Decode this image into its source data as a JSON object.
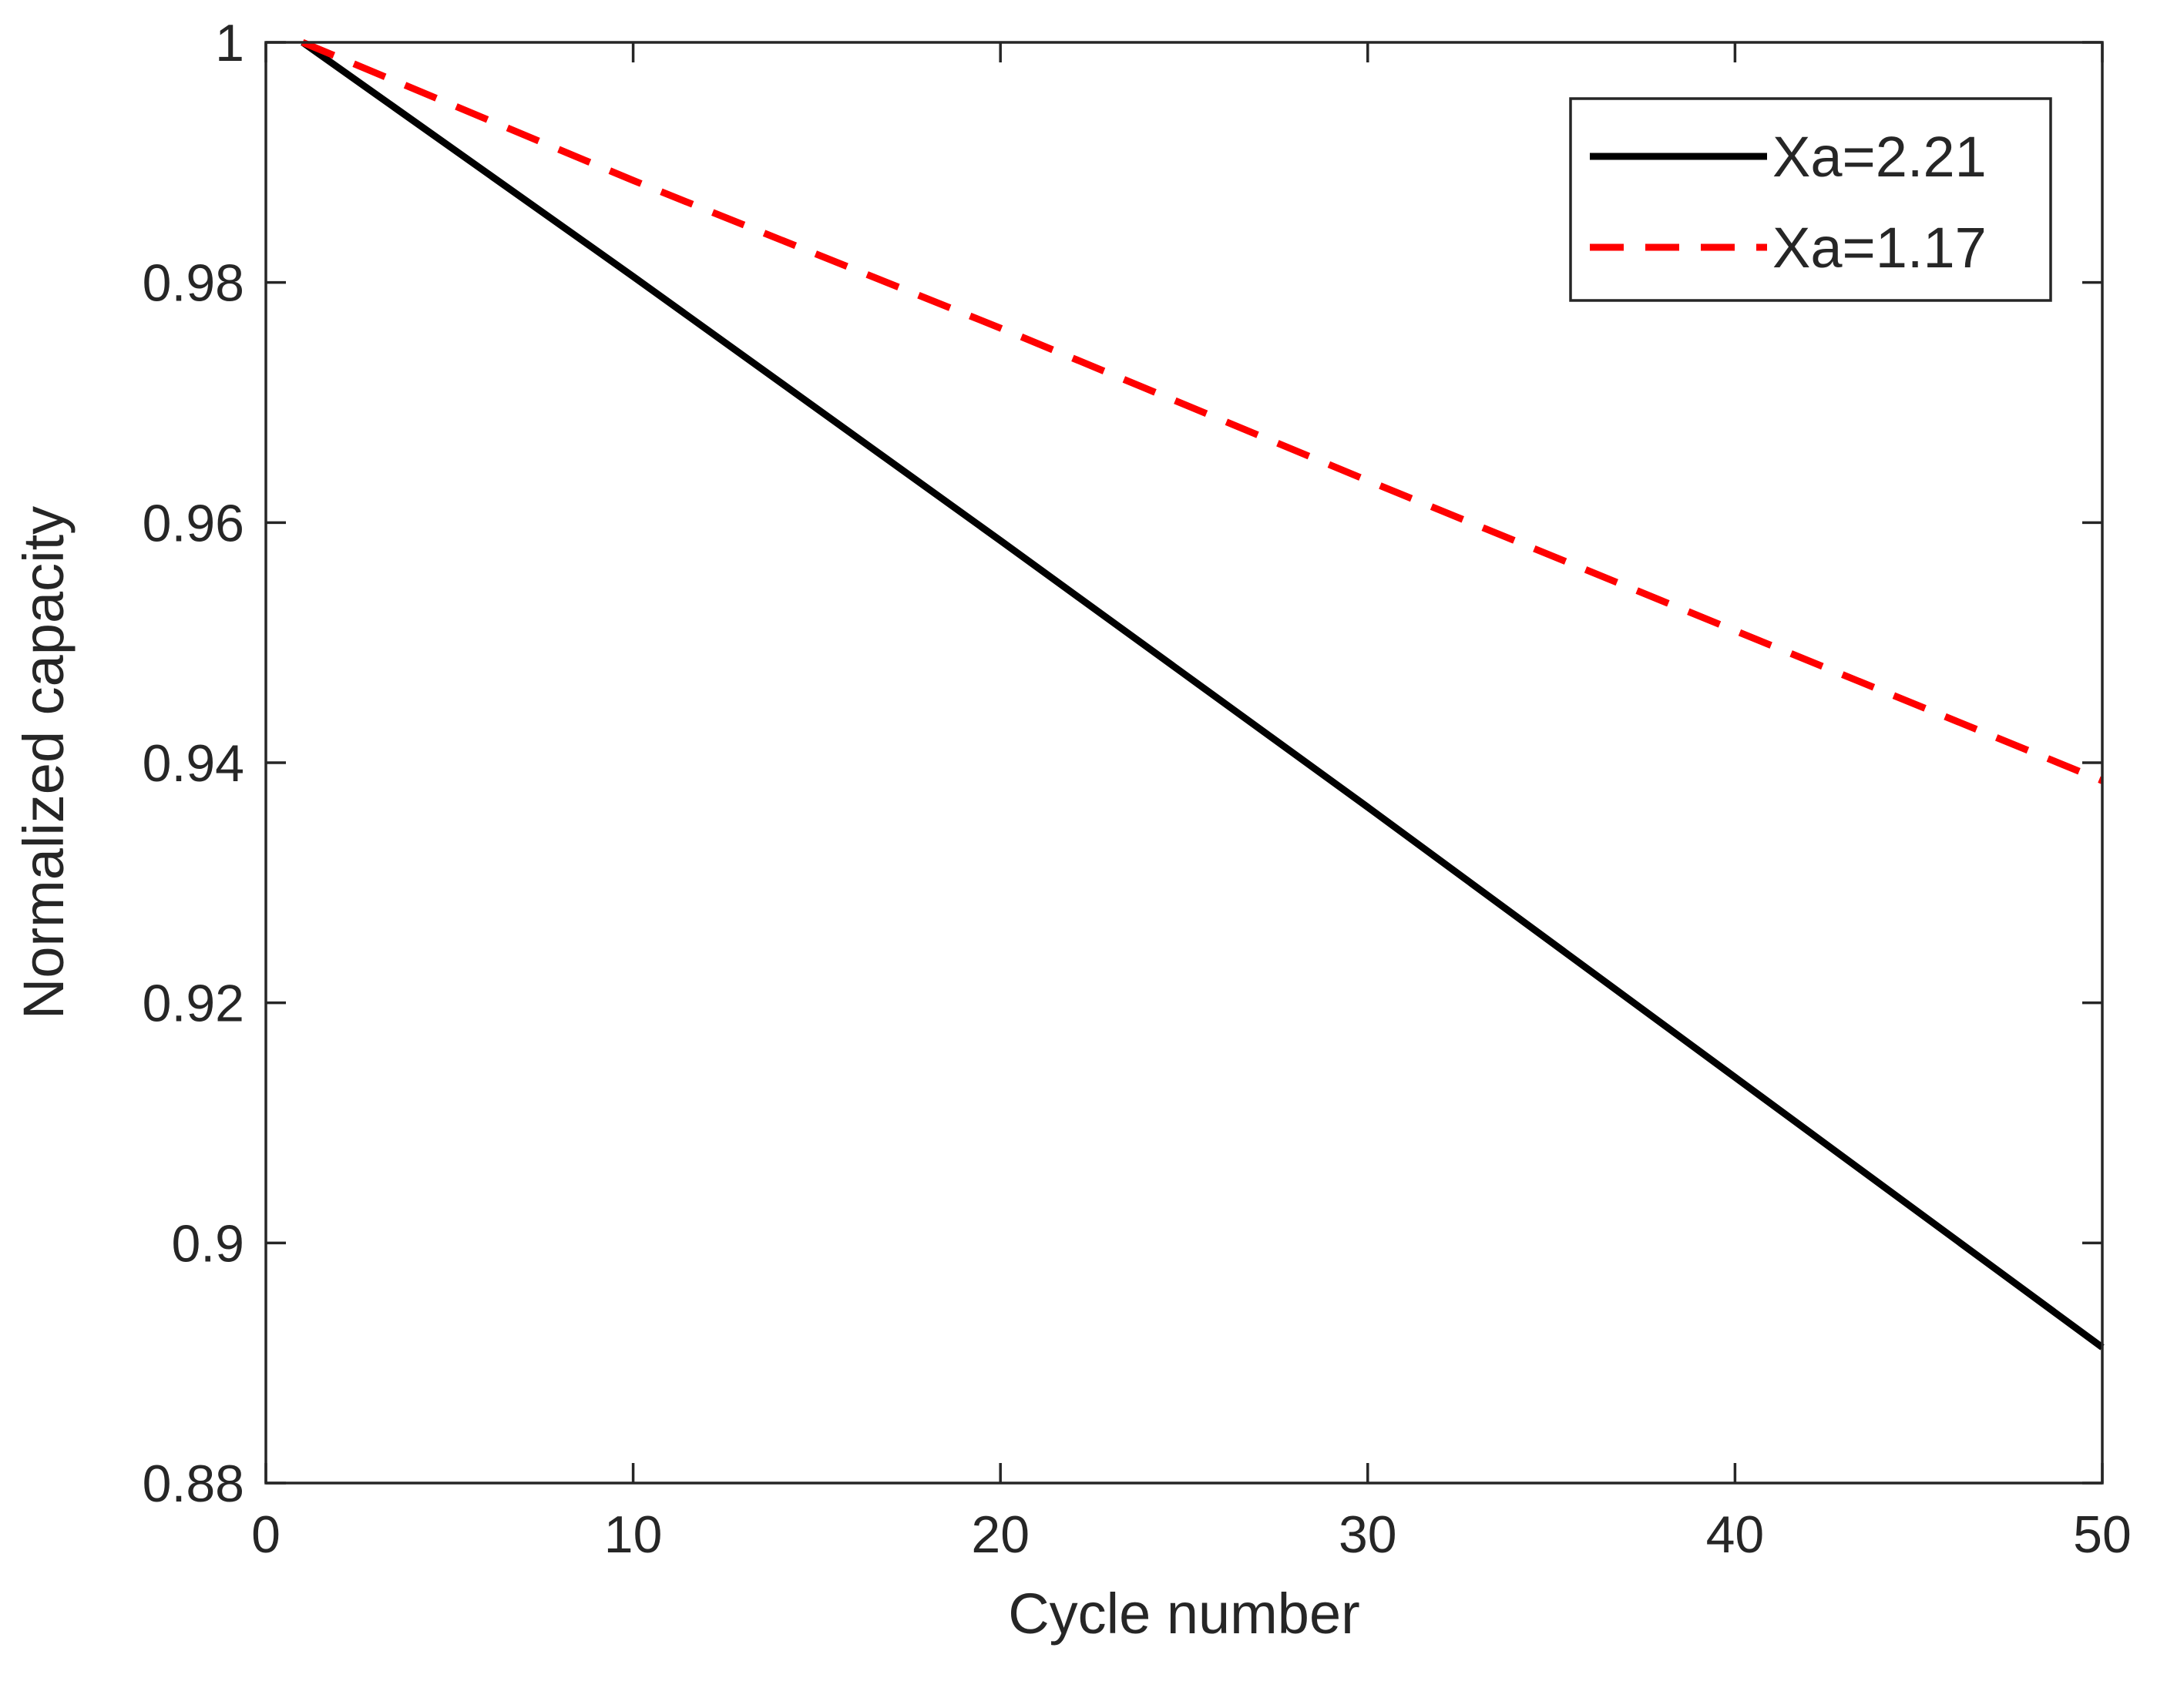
{
  "chart_data": {
    "type": "line",
    "title": "",
    "xlabel": "Cycle number",
    "ylabel": "Normalized capacity",
    "xlim": [
      0,
      50
    ],
    "ylim": [
      0.88,
      1.0
    ],
    "xticks": [
      0,
      10,
      20,
      30,
      40,
      50
    ],
    "xtick_labels": [
      "0",
      "10",
      "20",
      "30",
      "40",
      "50"
    ],
    "yticks": [
      0.88,
      0.9,
      0.92,
      0.94,
      0.96,
      0.98,
      1.0
    ],
    "ytick_labels": [
      "0.88",
      "0.9",
      "0.92",
      "0.94",
      "0.96",
      "0.98",
      "1"
    ],
    "grid": false,
    "legend_position": "top-right",
    "series": [
      {
        "name": "Xa=2.21",
        "style": "solid",
        "color": "#000000",
        "x": [
          1,
          10,
          20,
          30,
          40,
          50
        ],
        "y": [
          1.0,
          0.9805,
          0.9585,
          0.9363,
          0.9138,
          0.8913
        ]
      },
      {
        "name": "Xa=1.17",
        "style": "dashed",
        "color": "#ff0000",
        "x": [
          1,
          10,
          20,
          30,
          40,
          50
        ],
        "y": [
          1.0,
          0.9885,
          0.9762,
          0.9635,
          0.951,
          0.9385
        ]
      }
    ]
  }
}
